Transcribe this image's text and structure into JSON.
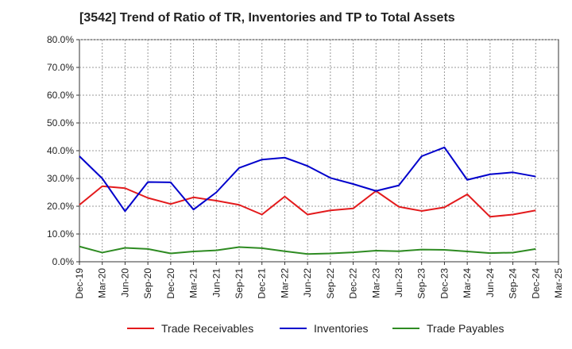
{
  "chart_data": {
    "type": "line",
    "title": "[3542]  Trend of Ratio of TR, Inventories and TP to Total Assets",
    "xlabel": "",
    "ylabel": "",
    "x_ticks": [
      "Dec-19",
      "Mar-20",
      "Jun-20",
      "Sep-20",
      "Dec-20",
      "Mar-21",
      "Jun-21",
      "Sep-21",
      "Dec-21",
      "Mar-22",
      "Jun-22",
      "Sep-22",
      "Dec-22",
      "Mar-23",
      "Jun-23",
      "Sep-23",
      "Dec-23",
      "Mar-24",
      "Jun-24",
      "Sep-24",
      "Dec-24",
      "Mar-25"
    ],
    "categories": [
      "Dec-19",
      "Mar-20",
      "Jun-20",
      "Sep-20",
      "Dec-20",
      "Mar-21",
      "Jun-21",
      "Sep-21",
      "Dec-21",
      "Mar-22",
      "Jun-22",
      "Sep-22",
      "Dec-22",
      "Mar-23",
      "Jun-23",
      "Sep-23",
      "Dec-23",
      "Mar-24",
      "Jun-24",
      "Sep-24",
      "Dec-24"
    ],
    "y_ticks": [
      "0.0%",
      "10.0%",
      "20.0%",
      "30.0%",
      "40.0%",
      "50.0%",
      "60.0%",
      "70.0%",
      "80.0%"
    ],
    "ylim": [
      0,
      80
    ],
    "grid": true,
    "legend_position": "bottom",
    "series": [
      {
        "name": "Trade Receivables",
        "color": "#e31a1c",
        "values": [
          20.5,
          27.2,
          26.5,
          23.0,
          20.8,
          23.2,
          22.0,
          20.5,
          17.0,
          23.5,
          17.0,
          18.5,
          19.2,
          25.5,
          19.8,
          18.3,
          19.6,
          24.3,
          16.2,
          17.0,
          18.5
        ]
      },
      {
        "name": "Inventories",
        "color": "#0000cc",
        "values": [
          38.0,
          30.0,
          18.2,
          28.7,
          28.6,
          18.8,
          25.0,
          33.8,
          36.8,
          37.5,
          34.5,
          30.2,
          28.0,
          25.5,
          27.5,
          38.0,
          41.2,
          29.5,
          31.5,
          32.2,
          30.7
        ]
      },
      {
        "name": "Trade Payables",
        "color": "#2e8b22",
        "values": [
          5.5,
          3.3,
          5.0,
          4.6,
          3.0,
          3.7,
          4.1,
          5.3,
          4.9,
          3.8,
          2.8,
          3.0,
          3.4,
          4.0,
          3.8,
          4.4,
          4.3,
          3.7,
          3.1,
          3.3,
          4.6
        ]
      }
    ]
  }
}
